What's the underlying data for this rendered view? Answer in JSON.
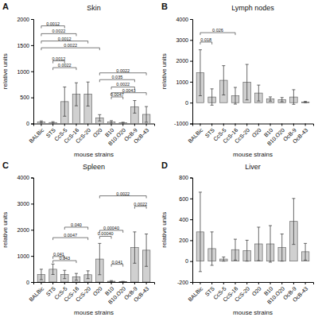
{
  "chart_data": [
    {
      "type": "bar",
      "panel_label": "A",
      "title": "Skin",
      "xlabel": "mouse strains",
      "ylabel": "relative units",
      "categories": [
        "BALBic",
        "STS",
        "CcS-5",
        "CcS-16",
        "CcS-20",
        "O20",
        "B10",
        "B10.O20",
        "OcB-9",
        "OcB-43"
      ],
      "values": [
        30,
        20,
        420,
        560,
        565,
        110,
        30,
        15,
        320,
        175
      ],
      "errors": [
        20,
        15,
        280,
        220,
        230,
        60,
        25,
        10,
        120,
        150
      ],
      "color": "#d0d0d0",
      "ylim": [
        0,
        2000
      ],
      "yticks": [
        0,
        500,
        1000,
        1500,
        2000
      ],
      "grid": false,
      "significance": [
        {
          "x1": 0,
          "x2": 2,
          "y": 1870,
          "p": "0.0012"
        },
        {
          "x1": 0,
          "x2": 3,
          "y": 1720,
          "p": "0.0022"
        },
        {
          "x1": 0,
          "x2": 4,
          "y": 1580,
          "p": "0.0012"
        },
        {
          "x1": 0,
          "x2": 5,
          "y": 1450,
          "p": "0.0022"
        },
        {
          "x1": 1,
          "x2": 2,
          "y": 1200,
          "p": "0.0012"
        },
        {
          "x1": 1,
          "x2": 3,
          "y": 1070,
          "p": "0.0022"
        },
        {
          "x1": 5,
          "x2": 8,
          "y": 840,
          "p": "0.035"
        },
        {
          "x1": 5,
          "x2": 9,
          "y": 970,
          "p": "0.0022"
        },
        {
          "x1": 6,
          "x2": 8,
          "y": 700,
          "p": "0.0022"
        },
        {
          "x1": 6,
          "x2": 7,
          "y": 510,
          "p": "0.0047"
        },
        {
          "x1": 6,
          "x2": 9,
          "y": 590,
          "p": "0.0043"
        }
      ]
    },
    {
      "type": "bar",
      "panel_label": "B",
      "title": "Lymph nodes",
      "xlabel": "mouse strains",
      "ylabel": "relative units",
      "categories": [
        "BALBic",
        "STS",
        "CcS-5",
        "CcS-16",
        "CcS-20",
        "O20",
        "B10",
        "B10.O20",
        "OcB-9",
        "OcB-43"
      ],
      "values": [
        1430,
        270,
        1070,
        330,
        980,
        460,
        175,
        145,
        270,
        30
      ],
      "errors": [
        1100,
        390,
        700,
        400,
        850,
        380,
        100,
        100,
        350,
        30
      ],
      "color": "#d0d0d0",
      "ylim": [
        -1000,
        4000
      ],
      "yticks": [
        -1000,
        0,
        1000,
        2000,
        3000,
        4000
      ],
      "grid": false,
      "significance": [
        {
          "x1": 0,
          "x2": 1,
          "y": 2900,
          "p": "0.018"
        },
        {
          "x1": 0,
          "x2": 3,
          "y": 3350,
          "p": "0.026"
        }
      ]
    },
    {
      "type": "bar",
      "panel_label": "C",
      "title": "Spleen",
      "xlabel": "mouse strains",
      "ylabel": "relative units",
      "categories": [
        "BALBic",
        "STS",
        "CcS-5",
        "CcS-16",
        "CcS-20",
        "O20",
        "B10",
        "B10.O20",
        "OcB-9",
        "OcB-43"
      ],
      "values": [
        290,
        490,
        290,
        200,
        280,
        880,
        30,
        15,
        1320,
        1220
      ],
      "errors": [
        200,
        200,
        160,
        130,
        150,
        600,
        25,
        10,
        600,
        620
      ],
      "color": "#d0d0d0",
      "ylim": [
        0,
        4000
      ],
      "yticks": [
        0,
        1000,
        2000,
        3000,
        4000
      ],
      "grid": false,
      "significance": [
        {
          "x1": 1,
          "x2": 2,
          "y": 980,
          "p": "0.041"
        },
        {
          "x1": 1,
          "x2": 3,
          "y": 820,
          "p": "0.043"
        },
        {
          "x1": 1,
          "x2": 4,
          "y": 1700,
          "p": "0.0047"
        },
        {
          "x1": 2,
          "x2": 4,
          "y": 2100,
          "p": "0.040"
        },
        {
          "x1": 5,
          "x2": 6,
          "y": 1750,
          "p": "0.00040"
        },
        {
          "x1": 5,
          "x2": 7,
          "y": 1980,
          "p": "0.00040"
        },
        {
          "x1": 6,
          "x2": 7,
          "y": 680,
          "p": "0.041"
        },
        {
          "x1": 8,
          "x2": 9,
          "y": 2900,
          "p": "0.0022"
        },
        {
          "x1": 5,
          "x2": 9,
          "y": 3300,
          "p": "0.0022"
        }
      ]
    },
    {
      "type": "bar",
      "panel_label": "D",
      "title": "Liver",
      "xlabel": "mouse strains",
      "ylabel": "relative units",
      "categories": [
        "BALBic",
        "STS",
        "CcS-5",
        "CcS-16",
        "CcS-20",
        "O20",
        "B10",
        "B10.O20",
        "OcB-9",
        "OcB-43"
      ],
      "values": [
        280,
        120,
        20,
        110,
        100,
        165,
        165,
        130,
        380,
        90
      ],
      "errors": [
        380,
        160,
        20,
        100,
        100,
        160,
        175,
        130,
        220,
        80
      ],
      "color": "#d0d0d0",
      "ylim": [
        -200,
        800
      ],
      "yticks": [
        -200,
        0,
        200,
        400,
        600,
        800
      ],
      "grid": false,
      "significance": []
    }
  ]
}
